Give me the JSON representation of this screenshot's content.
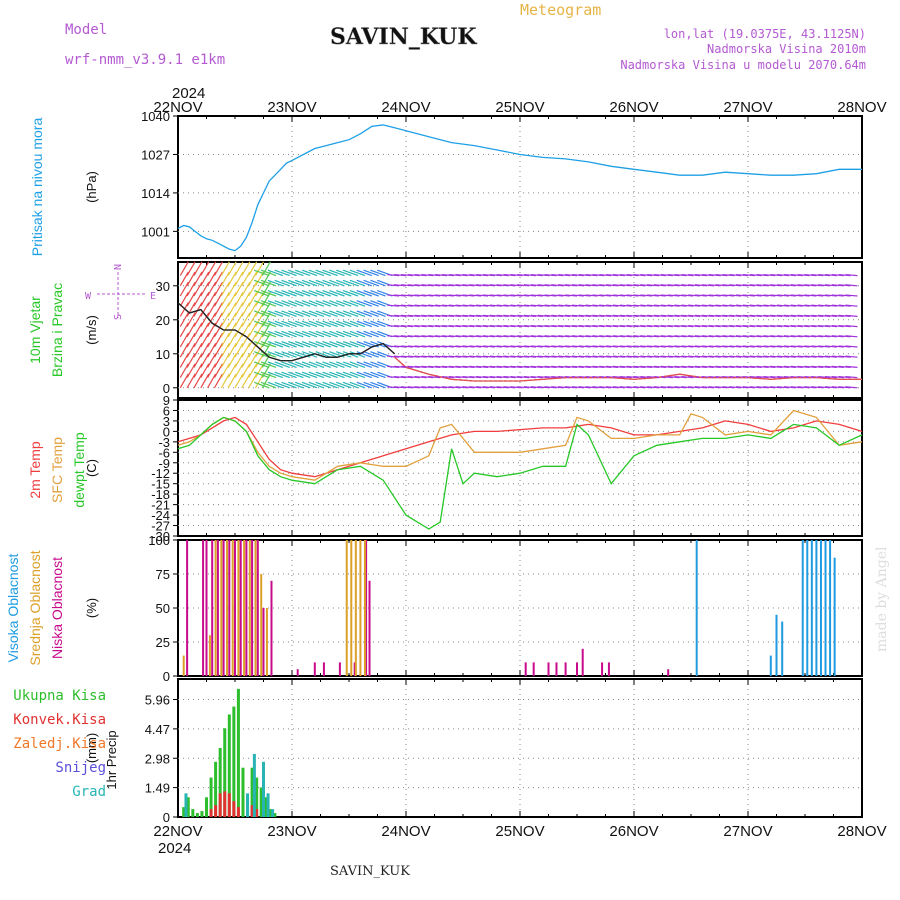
{
  "header": {
    "model_label": "Model",
    "model_name": "wrf-nmm_v3.9.1  e1km",
    "station": "SAVIN_KUK",
    "title": "Meteogram",
    "coords": "lon,lat (19.0375E, 43.1125N)",
    "elevation": "Nadmorska Visina 2010m",
    "model_elevation": "Nadmorska Visina u modelu 2070.64m",
    "year_top": "2024",
    "year_bottom": "2024",
    "footer": "SAVIN_KUK",
    "credit": "made by Angel"
  },
  "colors": {
    "pressure": "#1ea0e6",
    "temp2m": "#f03c3c",
    "sfc": "#e1a03c",
    "dewpt": "#28c828",
    "high_cloud": "#1e9be1",
    "mid_cloud": "#dca028",
    "low_cloud": "#c80a8c",
    "total_precip": "#2dbe2d",
    "convective": "#e13232",
    "freezing": "#f07828",
    "snow": "#5a50dc",
    "hail": "#28b4b4",
    "wind_label": "#b45ad2"
  },
  "wind_legend": {
    "n": "N",
    "s": "S",
    "w": "W",
    "e": "E"
  },
  "chart_data": [
    {
      "type": "line",
      "name": "pressure",
      "ylabel": "Pritisak na nivou mora",
      "unit": "(hPa)",
      "x_ticks": [
        "22NOV",
        "23NOV",
        "24NOV",
        "25NOV",
        "26NOV",
        "27NOV",
        "28NOV"
      ],
      "yticks": [
        1001,
        1014,
        1027,
        1040
      ],
      "ylim": [
        992,
        1040
      ],
      "grid": true,
      "series": [
        {
          "color_key": "pressure",
          "x": [
            0,
            0.05,
            0.1,
            0.15,
            0.2,
            0.25,
            0.3,
            0.35,
            0.4,
            0.45,
            0.5,
            0.55,
            0.6,
            0.65,
            0.7,
            0.75,
            0.8,
            0.85,
            0.9,
            0.95,
            1,
            1.1,
            1.2,
            1.3,
            1.4,
            1.5,
            1.6,
            1.7,
            1.8,
            1.9,
            2,
            2.2,
            2.4,
            2.6,
            2.8,
            3,
            3.2,
            3.4,
            3.6,
            3.8,
            4,
            4.2,
            4.4,
            4.6,
            4.8,
            5,
            5.2,
            5.4,
            5.6,
            5.8,
            6
          ],
          "values": [
            1002,
            1003,
            1002.5,
            1001,
            999.5,
            998.5,
            998,
            997,
            996,
            995,
            994.5,
            996,
            999,
            1004,
            1010,
            1014,
            1018,
            1020,
            1022,
            1024,
            1025,
            1027,
            1029,
            1030,
            1031,
            1032,
            1034,
            1036.5,
            1037,
            1036,
            1035,
            1033,
            1031,
            1030,
            1028.5,
            1027,
            1026,
            1025.5,
            1024.5,
            1023,
            1022,
            1021,
            1020,
            1020,
            1021,
            1020.5,
            1020,
            1020,
            1020.5,
            1022,
            1022
          ]
        }
      ]
    },
    {
      "type": "line",
      "name": "wind",
      "ylabel": "10m Vjetar Brzina i Pravac",
      "unit": "(m/s)",
      "yticks": [
        0,
        10,
        20,
        30
      ],
      "ylim": [
        -3,
        37
      ],
      "grid": true,
      "series": [
        {
          "name": "brzina",
          "color": "#222222",
          "x": [
            0,
            0.1,
            0.2,
            0.3,
            0.4,
            0.5,
            0.6,
            0.7,
            0.8,
            0.9,
            1,
            1.1,
            1.2,
            1.3,
            1.4,
            1.5,
            1.6,
            1.7,
            1.8,
            1.9
          ],
          "values": [
            25,
            22,
            23,
            19,
            17,
            17,
            15,
            12,
            9,
            8,
            8,
            9,
            10,
            9,
            9,
            10,
            10,
            12,
            13,
            10
          ]
        },
        {
          "name": "udari",
          "color": "#e05050",
          "x": [
            1.9,
            2,
            2.2,
            2.4,
            2.6,
            2.8,
            3,
            3.2,
            3.4,
            3.6,
            3.8,
            4,
            4.2,
            4.4,
            4.6,
            4.8,
            5,
            5.2,
            5.4,
            5.6,
            5.8,
            6
          ],
          "values": [
            9,
            6,
            4,
            2.5,
            2,
            2,
            2,
            2.5,
            3,
            3,
            3,
            2.5,
            3,
            4,
            3,
            3,
            3,
            2.5,
            3,
            3,
            2.5,
            2.5
          ]
        }
      ]
    },
    {
      "type": "line",
      "name": "temperature",
      "ylabel": "2m Temp / SFC Temp / dewpt Temp",
      "unit": "(C)",
      "yticks": [
        9,
        6,
        3,
        0,
        -3,
        -6,
        -9,
        -12,
        -15,
        -18,
        -21,
        -24,
        -27,
        -30
      ],
      "ylim": [
        -30,
        9
      ],
      "grid": true,
      "series": [
        {
          "name": "2m Temp",
          "color_key": "temp2m",
          "x": [
            0,
            0.1,
            0.2,
            0.3,
            0.4,
            0.5,
            0.6,
            0.7,
            0.8,
            0.9,
            1,
            1.2,
            1.4,
            1.6,
            1.8,
            2,
            2.2,
            2.4,
            2.6,
            2.8,
            3,
            3.2,
            3.4,
            3.5,
            3.6,
            3.8,
            4,
            4.2,
            4.4,
            4.6,
            4.8,
            5,
            5.2,
            5.4,
            5.6,
            5.8,
            6
          ],
          "values": [
            -3,
            -2,
            -1,
            1,
            3,
            4,
            2,
            -3,
            -8,
            -11,
            -12,
            -13,
            -11,
            -9,
            -7,
            -5,
            -3,
            -1,
            0,
            0,
            0.5,
            1,
            1,
            1.5,
            2,
            1,
            -1,
            -1,
            0,
            1,
            3,
            2,
            0,
            1,
            3,
            2,
            0
          ]
        },
        {
          "name": "SFC Temp",
          "color_key": "sfc",
          "x": [
            0,
            0.1,
            0.2,
            0.3,
            0.4,
            0.5,
            0.6,
            0.7,
            0.8,
            0.9,
            1,
            1.2,
            1.4,
            1.6,
            1.8,
            2,
            2.2,
            2.3,
            2.4,
            2.6,
            2.8,
            3,
            3.2,
            3.4,
            3.5,
            3.6,
            3.8,
            4,
            4.2,
            4.4,
            4.5,
            4.6,
            4.8,
            5,
            5.2,
            5.4,
            5.6,
            5.8,
            6
          ],
          "values": [
            -4,
            -3,
            -1,
            2,
            4,
            3,
            0,
            -6,
            -10,
            -12,
            -13,
            -14,
            -10,
            -9,
            -10,
            -10,
            -7,
            1,
            2,
            -6,
            -6,
            -6,
            -5,
            -4,
            4,
            3,
            -2,
            -2,
            -1,
            -1,
            5,
            4,
            -1,
            0,
            -1,
            6,
            4,
            -4,
            -3
          ]
        },
        {
          "name": "dewpt Temp",
          "color_key": "dewpt",
          "x": [
            0,
            0.1,
            0.2,
            0.3,
            0.4,
            0.5,
            0.6,
            0.7,
            0.8,
            0.9,
            1,
            1.2,
            1.4,
            1.6,
            1.8,
            2,
            2.2,
            2.3,
            2.4,
            2.5,
            2.6,
            2.8,
            3,
            3.2,
            3.4,
            3.5,
            3.6,
            3.8,
            4,
            4.2,
            4.4,
            4.6,
            4.8,
            5,
            5.2,
            5.4,
            5.6,
            5.8,
            6
          ],
          "values": [
            -5,
            -4,
            -1,
            2,
            4,
            3,
            0,
            -7,
            -11,
            -13,
            -14,
            -15,
            -11,
            -10,
            -14,
            -24,
            -28,
            -26,
            -5,
            -15,
            -12,
            -13,
            -12,
            -10,
            -10,
            2,
            -1,
            -15,
            -7,
            -4,
            -3,
            -2,
            -2,
            -1,
            -2,
            2,
            1,
            -4,
            -1
          ]
        }
      ]
    },
    {
      "type": "bar",
      "name": "cloud",
      "ylabel": "Visoka Oblacnost / Srednja Oblacnost / Niska Oblacnost",
      "unit": "(%)",
      "yticks": [
        0,
        25,
        50,
        75,
        100
      ],
      "ylim": [
        0,
        100
      ],
      "grid": true,
      "series": [
        {
          "name": "Niska Oblacnost",
          "color_key": "low_cloud",
          "x": [
            0.08,
            0.22,
            0.25,
            0.3,
            0.35,
            0.4,
            0.45,
            0.5,
            0.55,
            0.6,
            0.65,
            0.7,
            0.75,
            0.82,
            1.05,
            1.2,
            1.28,
            1.42,
            1.55,
            1.65,
            1.68,
            3.05,
            3.12,
            3.25,
            3.32,
            3.4,
            3.5,
            3.55,
            3.72,
            3.78,
            4.3
          ],
          "values": [
            100,
            100,
            100,
            100,
            100,
            100,
            100,
            100,
            100,
            100,
            100,
            100,
            50,
            70,
            5,
            10,
            10,
            10,
            10,
            100,
            70,
            10,
            10,
            10,
            10,
            10,
            10,
            20,
            10,
            10,
            5
          ]
        },
        {
          "name": "Srednja Oblacnost",
          "color_key": "mid_cloud",
          "x": [
            0.05,
            0.28,
            0.33,
            0.38,
            0.43,
            0.48,
            0.53,
            0.58,
            0.63,
            0.68,
            0.73,
            0.78,
            1.48,
            1.52,
            1.56,
            1.6,
            1.64
          ],
          "values": [
            15,
            30,
            100,
            100,
            100,
            100,
            100,
            100,
            100,
            100,
            75,
            50,
            100,
            100,
            100,
            100,
            100
          ]
        },
        {
          "name": "Visoka Oblacnost",
          "color_key": "high_cloud",
          "x": [
            4.55,
            5.2,
            5.25,
            5.3,
            5.48,
            5.52,
            5.56,
            5.6,
            5.64,
            5.68,
            5.72,
            5.76
          ],
          "values": [
            100,
            15,
            45,
            40,
            100,
            100,
            100,
            100,
            100,
            100,
            100,
            87
          ]
        }
      ]
    },
    {
      "type": "bar",
      "name": "precipitation",
      "ylabel": "1hr Precip",
      "unit": "(mm)",
      "yticks": [
        0,
        1.49,
        2.98,
        4.47,
        5.96
      ],
      "ylim": [
        0,
        7
      ],
      "grid": true,
      "legend": [
        "Ukupna Kisa",
        "Konvek.Kisa",
        "Zaledj.Kisa",
        "Snijeg",
        "Grad"
      ],
      "series": [
        {
          "name": "Ukupna Kisa",
          "color_key": "total_precip",
          "x": [
            0.05,
            0.09,
            0.13,
            0.17,
            0.21,
            0.25,
            0.29,
            0.33,
            0.37,
            0.41,
            0.45,
            0.49,
            0.53,
            0.57,
            0.61,
            0.65,
            0.69,
            0.73,
            0.77,
            0.81,
            0.85
          ],
          "values": [
            0.5,
            1,
            0.4,
            0.2,
            0.3,
            1,
            2,
            2.8,
            3.5,
            4.5,
            5.2,
            5.6,
            6.5,
            2.5,
            1,
            2.5,
            2,
            1.5,
            1,
            0.4,
            0.2
          ]
        },
        {
          "name": "Konvek.Kisa",
          "color_key": "convective",
          "x": [
            0.29,
            0.33,
            0.37,
            0.41,
            0.45,
            0.49,
            0.53,
            0.65,
            0.69
          ],
          "values": [
            0.4,
            0.6,
            1.2,
            1.3,
            1.2,
            0.8,
            0.5,
            0.6,
            0.4
          ]
        },
        {
          "name": "Grad",
          "color_key": "hail",
          "x": [
            0.07,
            0.61,
            0.67,
            0.75,
            0.79,
            0.83
          ],
          "values": [
            1.2,
            1.2,
            3.2,
            2.8,
            1.2,
            0.4
          ]
        }
      ]
    }
  ]
}
